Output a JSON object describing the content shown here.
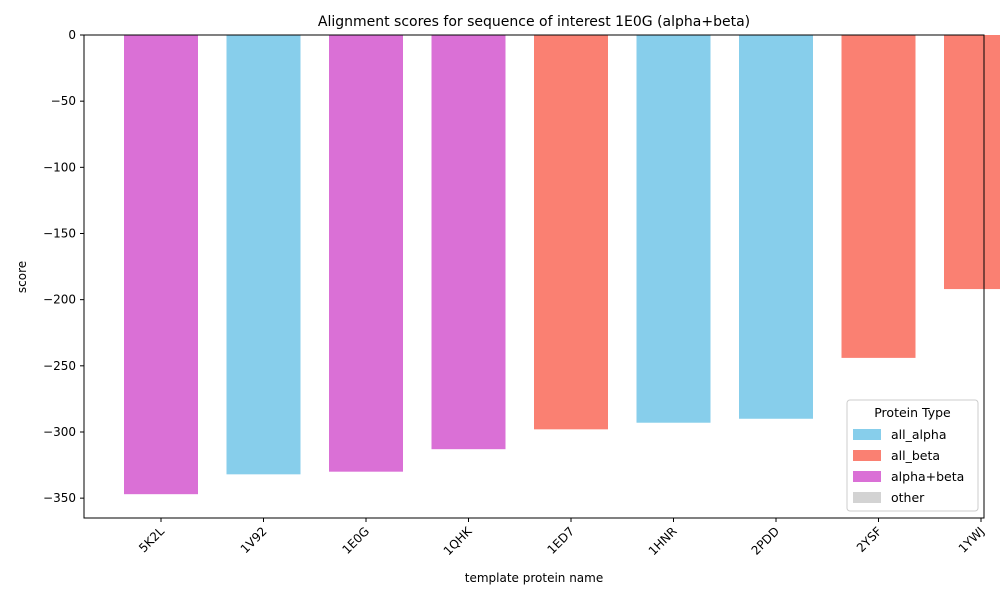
{
  "chart_data": {
    "type": "bar",
    "title": "Alignment scores for sequence of interest 1E0G (alpha+beta)",
    "xlabel": "template protein name",
    "ylabel": "score",
    "ylim": [
      -365,
      0
    ],
    "yticks": [
      0,
      -50,
      -100,
      -150,
      -200,
      -250,
      -300,
      -350
    ],
    "ytick_labels": [
      "0",
      "−50",
      "−100",
      "−150",
      "−200",
      "−250",
      "−300",
      "−350"
    ],
    "categories": [
      "5K2L",
      "1V92",
      "1E0G",
      "1QHK",
      "1ED7",
      "1HNR",
      "2PDD",
      "2YSF",
      "1YWJ"
    ],
    "values": [
      -347,
      -332,
      -330,
      -313,
      -298,
      -293,
      -290,
      -244,
      -192
    ],
    "bar_types": [
      "alpha+beta",
      "all_alpha",
      "alpha+beta",
      "alpha+beta",
      "all_beta",
      "all_alpha",
      "all_alpha",
      "all_beta",
      "all_beta"
    ],
    "type_colors": {
      "all_alpha": "#87CEEB",
      "all_beta": "#FA8072",
      "alpha+beta": "#DA70D6",
      "other": "#D3D3D3"
    },
    "legend": {
      "title": "Protein Type",
      "position": "lower-right",
      "entries": [
        "all_alpha",
        "all_beta",
        "alpha+beta",
        "other"
      ]
    },
    "grid": false
  }
}
